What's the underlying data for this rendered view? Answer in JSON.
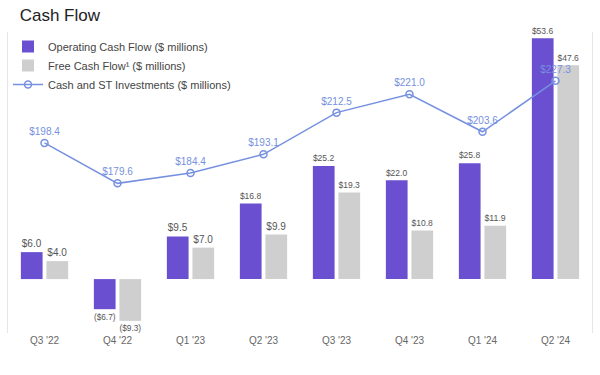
{
  "chart_data": {
    "type": "bar",
    "title": "Cash Flow",
    "categories": [
      "Q3 '22",
      "Q4 '22",
      "Q1 '23",
      "Q2 '23",
      "Q3 '23",
      "Q4 '23",
      "Q1 '24",
      "Q2 '24"
    ],
    "series": [
      {
        "name": "Operating Cash Flow ($ millions)",
        "type": "bar",
        "color": "#6a4fd0",
        "values": [
          6.0,
          -6.7,
          9.5,
          16.8,
          25.2,
          22.0,
          25.8,
          53.6
        ],
        "value_labels": [
          "$6.0",
          "($6.7)",
          "$9.5",
          "$16.8",
          "$25.2",
          "$22.0",
          "$25.8",
          "$53.6"
        ]
      },
      {
        "name": "Free Cash Flow¹ ($ millions)",
        "type": "bar",
        "color": "#cfcfcf",
        "values": [
          4.0,
          -9.3,
          7.0,
          9.9,
          19.3,
          10.8,
          11.9,
          47.6
        ],
        "value_labels": [
          "$4.0",
          "($9.3)",
          "$7.0",
          "$9.9",
          "$19.3",
          "$10.8",
          "$11.9",
          "$47.6"
        ]
      },
      {
        "name": "Cash and ST Investments ($ millions)",
        "type": "line",
        "axis": "y2",
        "color": "#7690e0",
        "marker": "open circle",
        "line_style": "solid",
        "values": [
          198.4,
          179.6,
          184.4,
          193.1,
          212.5,
          221.0,
          203.6,
          227.3
        ],
        "value_labels": [
          "$198.4",
          "$179.6",
          "$184.4",
          "$193.1",
          "$212.5",
          "$221.0",
          "$203.6",
          "$227.3"
        ]
      }
    ],
    "ylim": [
      -12,
      55
    ],
    "y2lim": [
      110,
      250
    ],
    "grid": false,
    "legend": "top-left",
    "data_labels": true,
    "tick_labels": "x"
  }
}
